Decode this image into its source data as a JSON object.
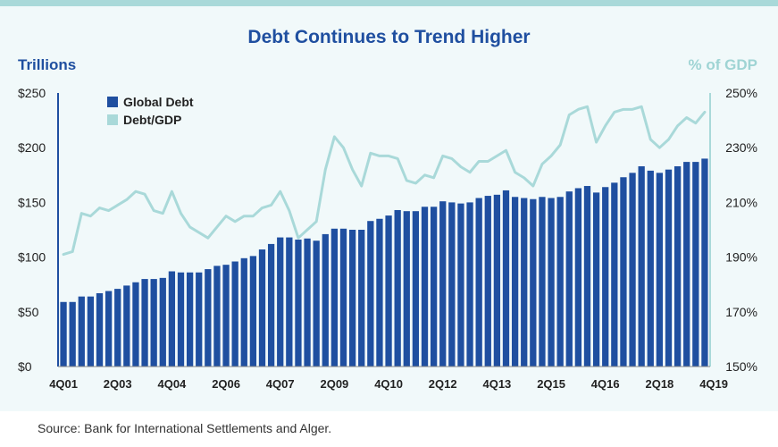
{
  "chart_data": {
    "type": "bar+line",
    "title": "Debt Continues to Trend Higher",
    "ylabel": "Trillions",
    "ylabel_right": "% of GDP",
    "source": "Source: Bank for International Settlements and Alger.",
    "ylim": [
      0,
      250
    ],
    "y2lim": [
      150,
      250
    ],
    "y_ticks": [
      "$250",
      "$200",
      "$150",
      "$100",
      "$50",
      "$0"
    ],
    "y2_ticks": [
      "250%",
      "230%",
      "210%",
      "190%",
      "170%",
      "150%"
    ],
    "x_tick_labels": [
      "4Q01",
      "2Q03",
      "4Q04",
      "2Q06",
      "4Q07",
      "2Q09",
      "4Q10",
      "2Q12",
      "4Q13",
      "2Q15",
      "4Q16",
      "2Q18",
      "4Q19"
    ],
    "x_tick_positions": [
      0,
      6,
      12,
      18,
      24,
      30,
      36,
      42,
      48,
      54,
      60,
      66,
      72
    ],
    "legend": [
      "Global Debt",
      "Debt/GDP"
    ],
    "colors": {
      "bars": "#1f4fa0",
      "line": "#a9d9d9",
      "text_dark": "#1f4fa0",
      "text_light": "#9fd4d4"
    },
    "series": [
      {
        "name": "Global Debt",
        "axis": "left",
        "type": "bar",
        "values": [
          59,
          59,
          64,
          64,
          67,
          69,
          71,
          74,
          77,
          80,
          80,
          81,
          87,
          86,
          86,
          86,
          89,
          92,
          93,
          96,
          99,
          101,
          107,
          112,
          118,
          118,
          116,
          117,
          115,
          121,
          126,
          126,
          125,
          125,
          133,
          135,
          138,
          143,
          142,
          142,
          146,
          146,
          151,
          150,
          149,
          150,
          154,
          156,
          157,
          161,
          155,
          154,
          153,
          155,
          154,
          155,
          160,
          163,
          165,
          159,
          164,
          168,
          173,
          177,
          183,
          179,
          177,
          180,
          183,
          187,
          187,
          190
        ]
      },
      {
        "name": "Debt/GDP",
        "axis": "right",
        "type": "line",
        "values": [
          191,
          192,
          206,
          205,
          208,
          207,
          209,
          211,
          214,
          213,
          207,
          206,
          214,
          206,
          201,
          199,
          197,
          201,
          205,
          203,
          205,
          205,
          208,
          209,
          214,
          207,
          197,
          200,
          203,
          222,
          234,
          230,
          222,
          216,
          228,
          227,
          227,
          226,
          218,
          217,
          220,
          219,
          227,
          226,
          223,
          221,
          225,
          225,
          227,
          229,
          221,
          219,
          216,
          224,
          227,
          231,
          242,
          244,
          245,
          232,
          238,
          243,
          244,
          244,
          245,
          233,
          230,
          233,
          238,
          241,
          239,
          243
        ]
      }
    ]
  }
}
